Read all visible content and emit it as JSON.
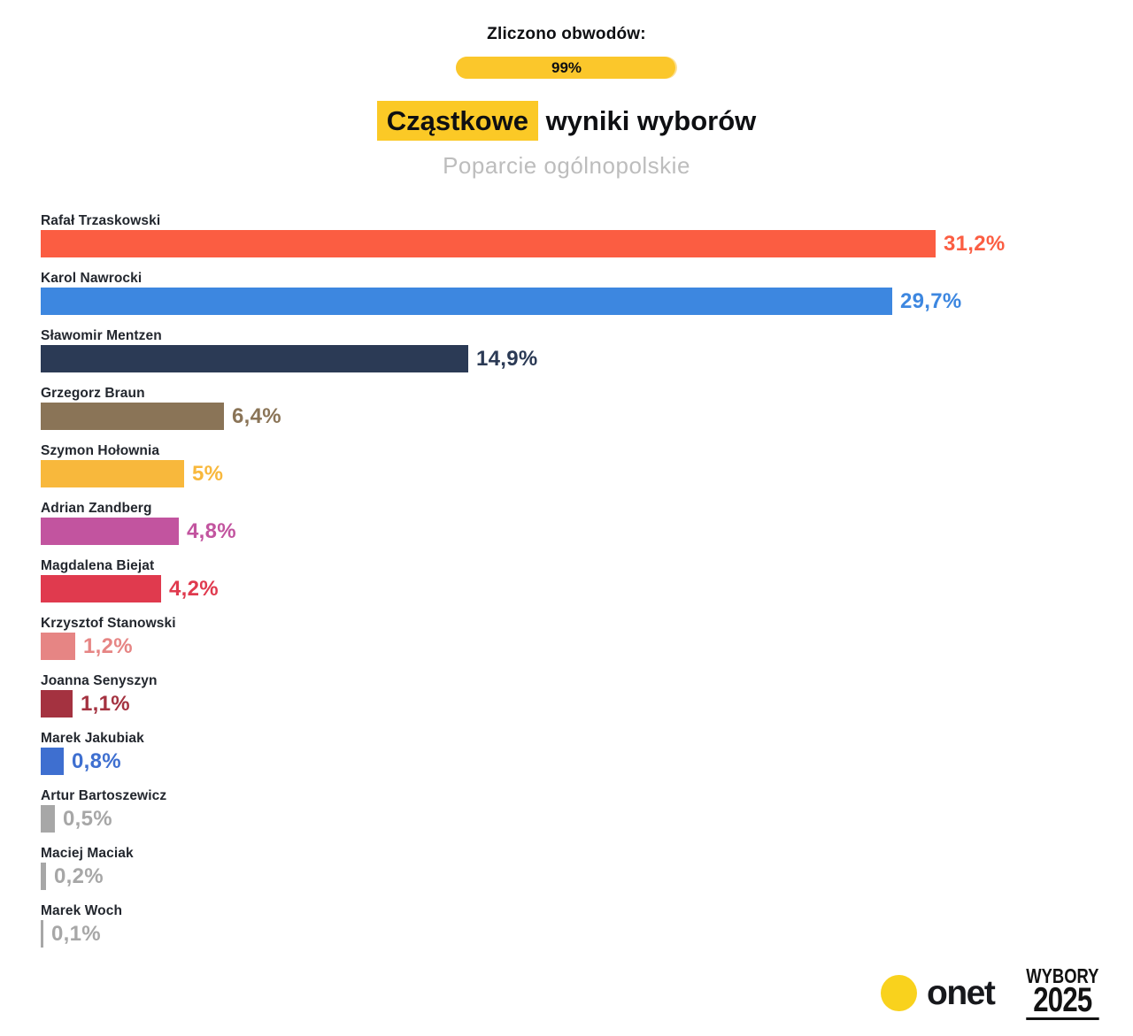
{
  "header": {
    "counted_label": "Zliczono obwodów:",
    "counted_value": "99%",
    "counted_percent": 99,
    "title_highlight": "Cząstkowe",
    "title_rest": " wyniki wyborów",
    "subtitle": "Poparcie ogólnopolskie"
  },
  "chart_data": {
    "type": "bar",
    "orientation": "horizontal",
    "title": "Cząstkowe wyniki wyborów",
    "subtitle": "Poparcie ogólnopolskie",
    "unit": "%",
    "xlim": [
      0,
      36.7
    ],
    "grid": false,
    "legend": false,
    "categories": [
      "Rafał Trzaskowski",
      "Karol Nawrocki",
      "Sławomir Mentzen",
      "Grzegorz Braun",
      "Szymon Hołownia",
      "Adrian Zandberg",
      "Magdalena Biejat",
      "Krzysztof Stanowski",
      "Joanna Senyszyn",
      "Marek Jakubiak",
      "Artur Bartoszewicz",
      "Maciej Maciak",
      "Marek Woch"
    ],
    "values": [
      31.2,
      29.7,
      14.9,
      6.4,
      5,
      4.8,
      4.2,
      1.2,
      1.1,
      0.8,
      0.5,
      0.2,
      0.1
    ],
    "value_labels": [
      "31,2%",
      "29,7%",
      "14,9%",
      "6,4%",
      "5%",
      "4,8%",
      "4,2%",
      "1,2%",
      "1,1%",
      "0,8%",
      "0,5%",
      "0,2%",
      "0,1%"
    ],
    "colors": [
      "#fb5d42",
      "#3d87e0",
      "#2b3a55",
      "#8a7457",
      "#f8b83c",
      "#c2549f",
      "#e03a4e",
      "#e68584",
      "#a43240",
      "#3e6fd0",
      "#a7a7a7",
      "#a7a7a7",
      "#a7a7a7"
    ]
  },
  "footer": {
    "onet_label": "onet",
    "wybory_line1": "WYBORY",
    "wybory_line2": "2025"
  },
  "brand_colors": {
    "accent_yellow": "#fbc926",
    "progress_fill": "#fbc72b",
    "progress_track": "#fce095",
    "onet_yellow": "#f9d21d",
    "text_dark": "#0e0f12",
    "subtitle_gray": "#bdbdbd"
  }
}
